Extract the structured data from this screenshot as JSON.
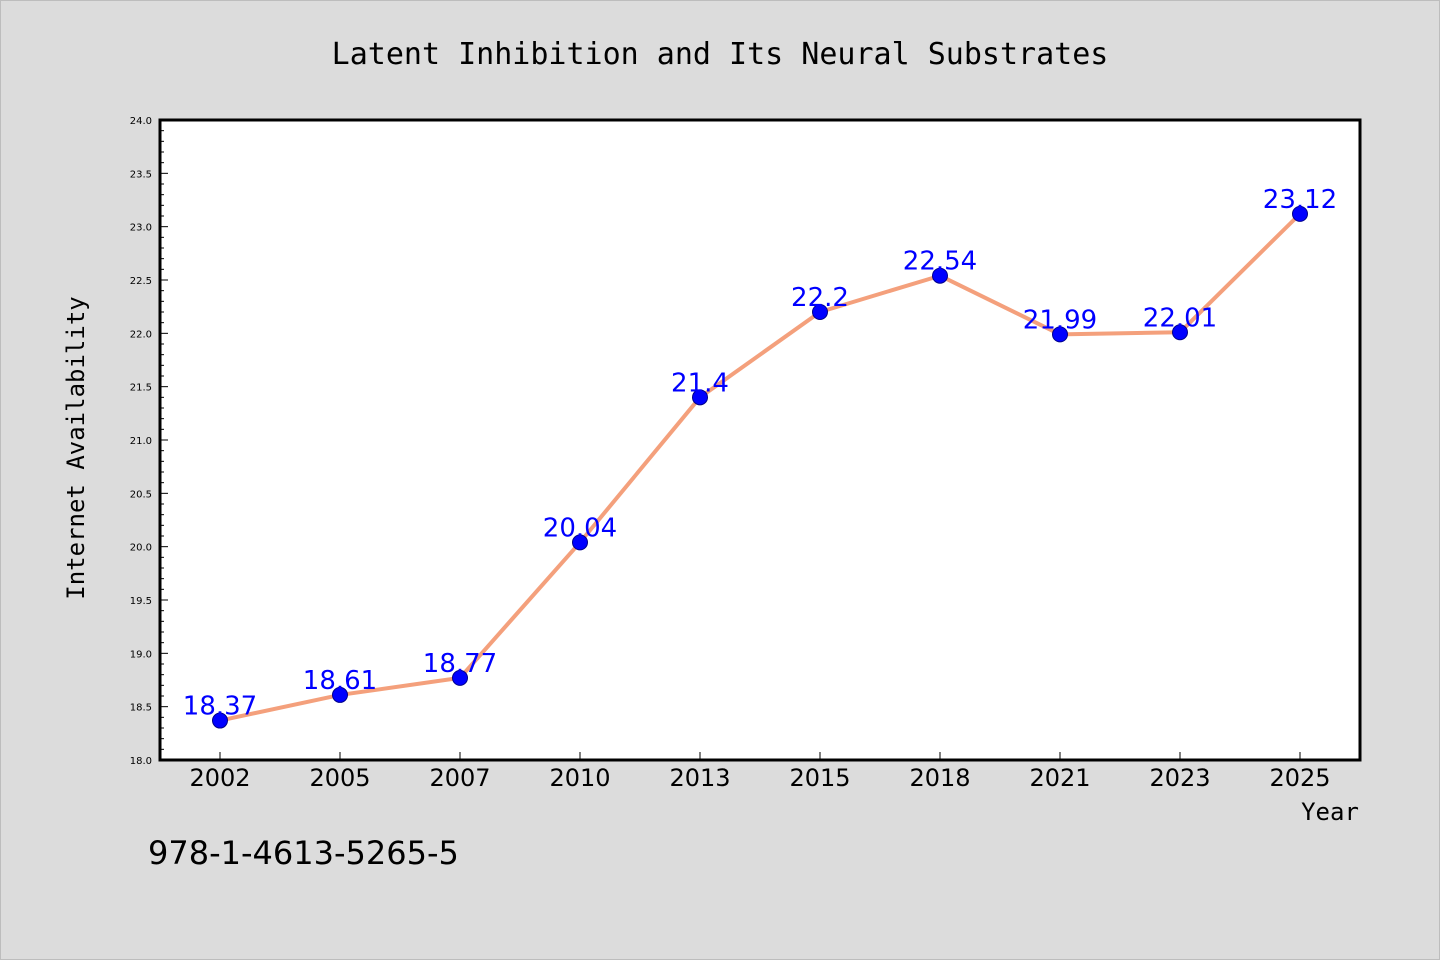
{
  "chart_data": {
    "type": "line",
    "title": "Latent Inhibition and Its Neural Substrates",
    "xlabel": "Year",
    "ylabel": "Internet Availability",
    "categories": [
      "2002",
      "2005",
      "2007",
      "2010",
      "2013",
      "2015",
      "2018",
      "2021",
      "2023",
      "2025"
    ],
    "series": [
      {
        "values": [
          18.37,
          18.61,
          18.77,
          20.04,
          21.4,
          22.2,
          22.54,
          21.99,
          22.01,
          23.12
        ],
        "labels": [
          "18.37",
          "18.61",
          "18.77",
          "20.04",
          "21.4",
          "22.2",
          "22.54",
          "21.99",
          "22.01",
          "23.12"
        ],
        "line_color": "#f4a07c",
        "marker_color": "#0000ff",
        "label_color": "#0000ff"
      }
    ],
    "ylim": [
      18.0,
      24.0
    ],
    "yticks": [
      "18.0",
      "18.5",
      "19.0",
      "19.5",
      "20.0",
      "20.5",
      "21.0",
      "21.5",
      "22.0",
      "22.5",
      "23.0",
      "23.5",
      "24.0"
    ],
    "grid": false,
    "legend": "none",
    "background_color": "#dcdcdc",
    "plot_background_color": "#ffffff"
  },
  "footer": {
    "isbn": "978-1-4613-5265-5"
  }
}
